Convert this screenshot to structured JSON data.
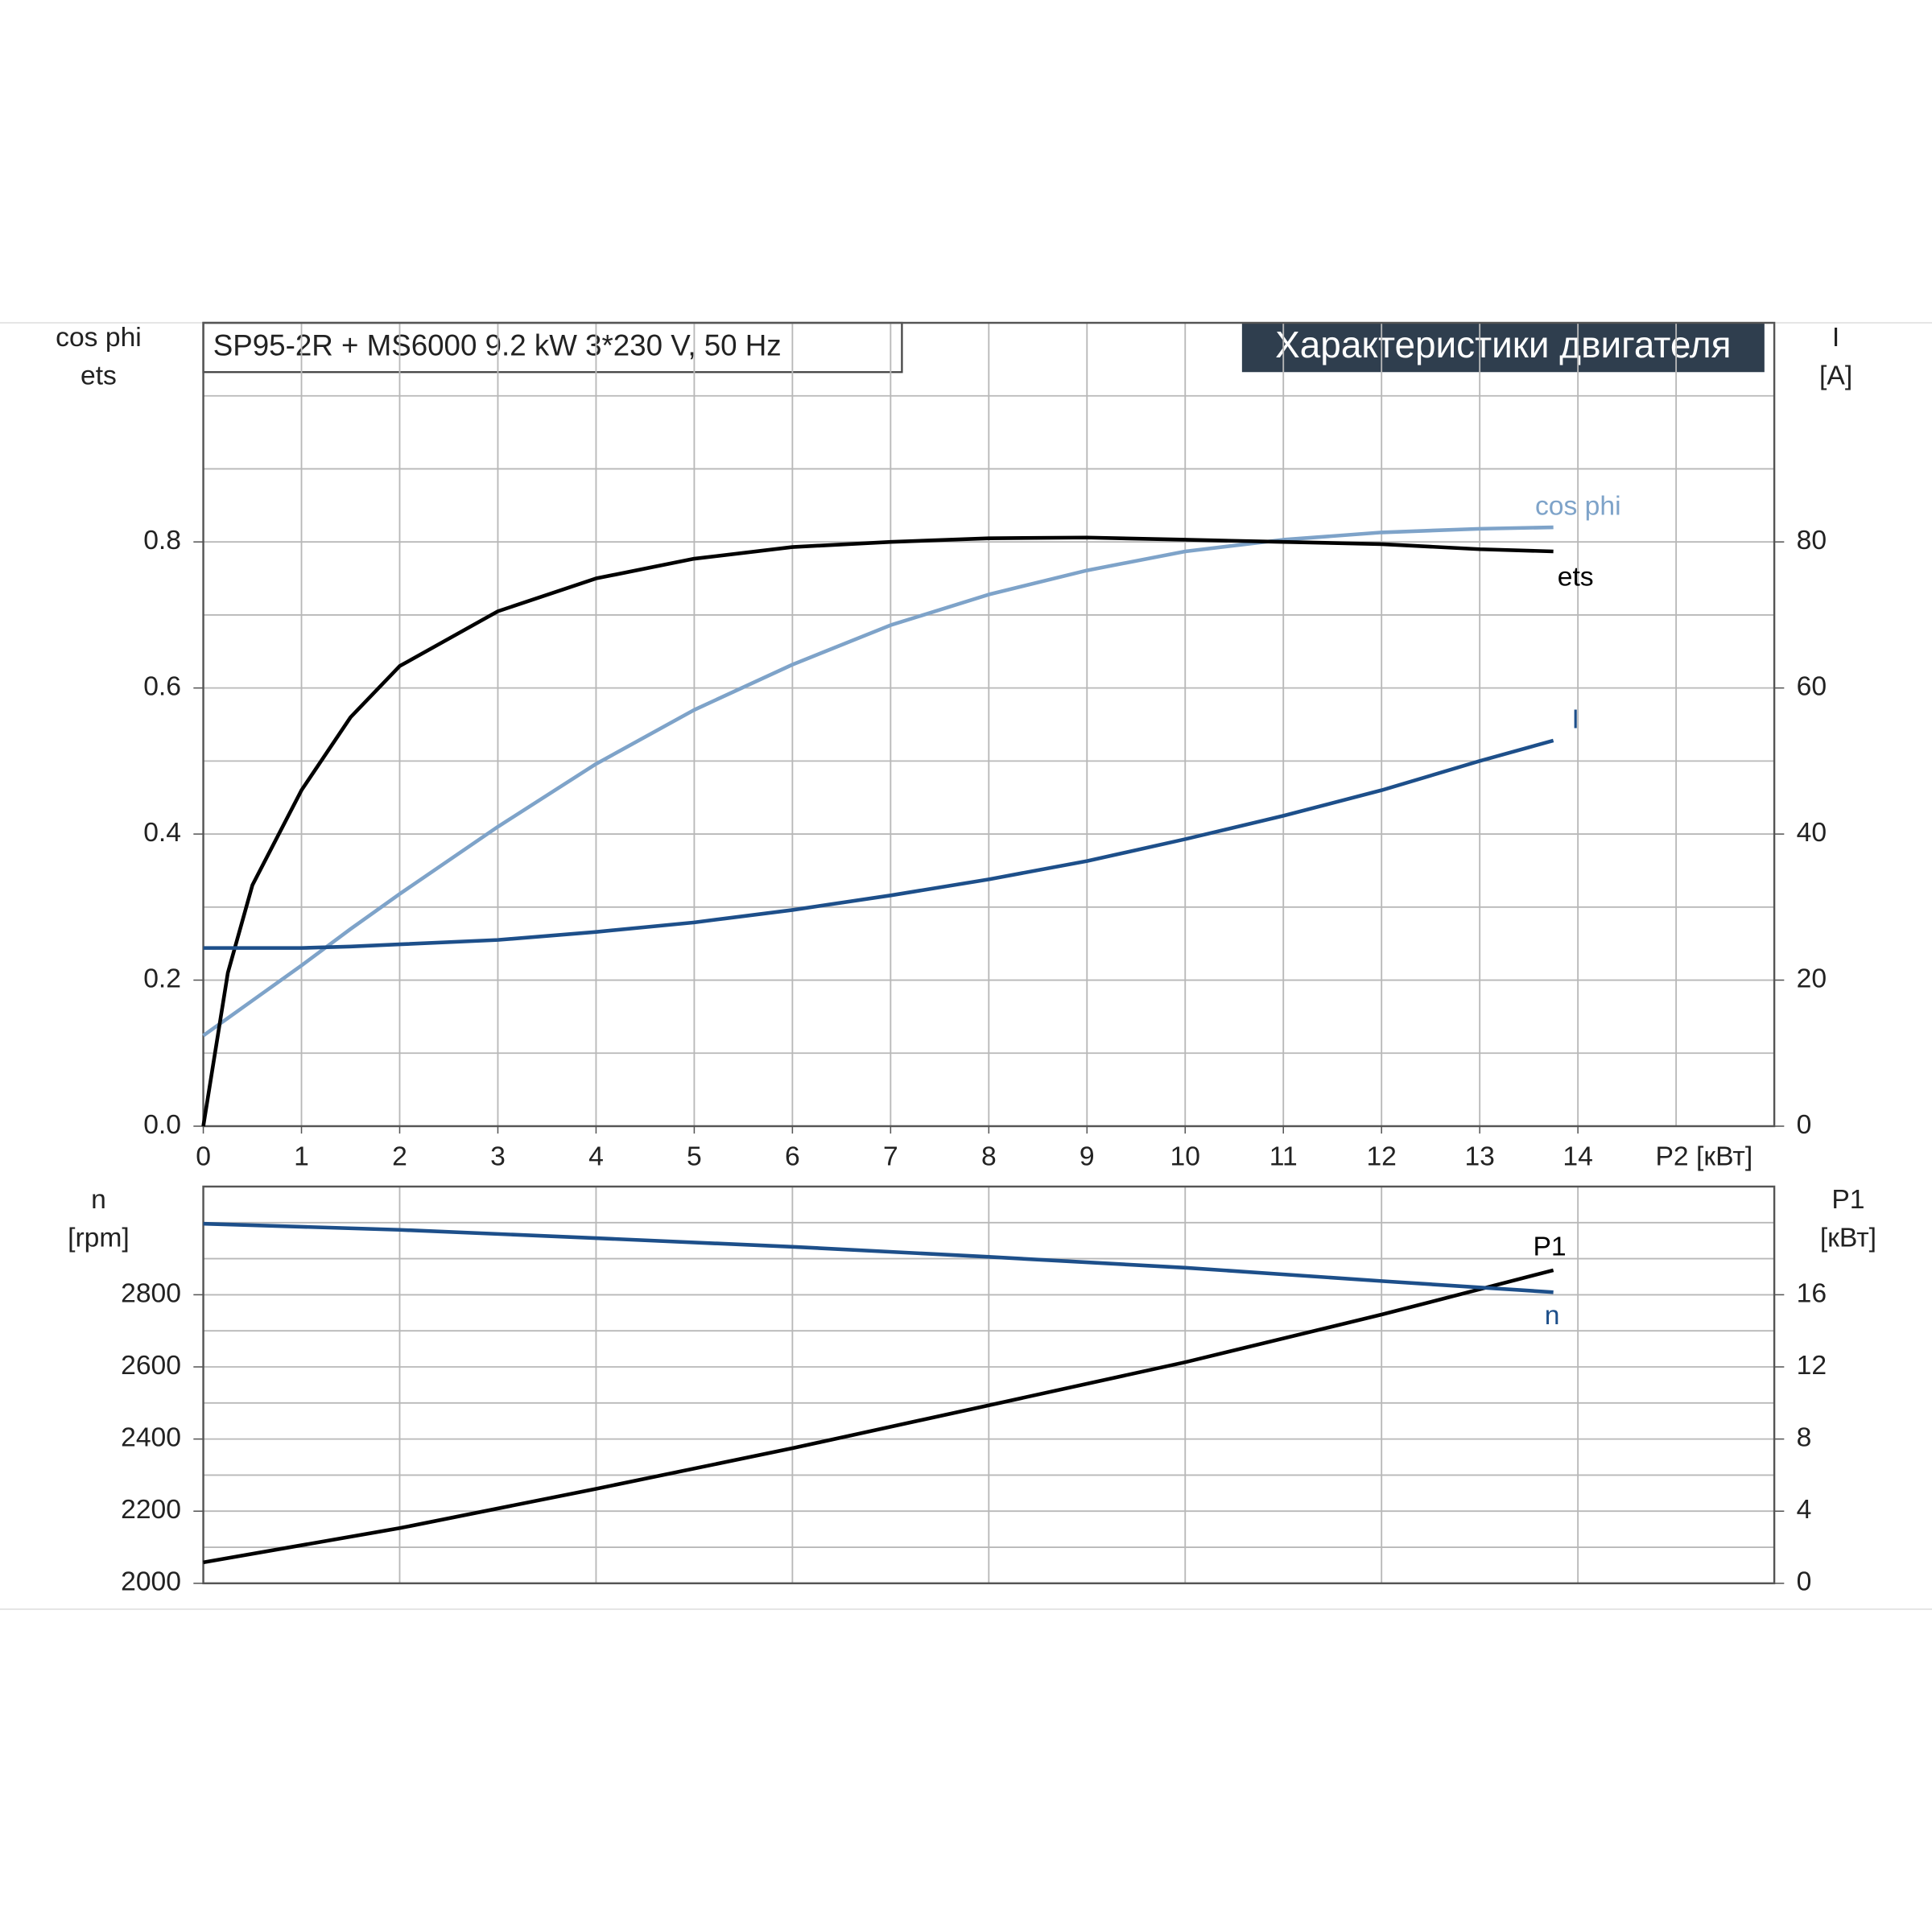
{
  "chart_data": [
    {
      "type": "line",
      "title": "SP95-2R + MS6000   9.2 kW   3*230 V, 50 Hz",
      "subtitle": "Характеристики двигателя",
      "xlabel": "P2 [кВт]",
      "ylabel": [
        "cos phi",
        "ets"
      ],
      "y2label": [
        "I",
        "[A]"
      ],
      "xlim": [
        0,
        16
      ],
      "xticks": [
        0,
        1,
        2,
        3,
        4,
        5,
        6,
        7,
        8,
        9,
        10,
        11,
        12,
        13,
        14
      ],
      "xgrid": [
        15
      ],
      "ylim": [
        0,
        1.1
      ],
      "yticks": [
        {
          "value": 0,
          "label": "0.0"
        },
        0.2,
        0.4,
        0.6,
        0.8
      ],
      "ygrid": [
        0.1,
        0.3,
        0.5,
        0.7,
        0.9,
        1.0
      ],
      "y2lim": [
        0,
        110
      ],
      "y2ticks": [
        0,
        20,
        40,
        60,
        80
      ],
      "grid": true,
      "x": [
        0,
        0.25,
        0.5,
        1,
        1.5,
        2,
        3,
        4,
        5,
        6,
        7,
        8,
        9,
        10,
        11,
        12,
        13,
        13.75
      ],
      "series": [
        {
          "name": "cos phi",
          "color": "#7ea3c9",
          "values": [
            0.124,
            0.148,
            0.172,
            0.22,
            0.27,
            0.318,
            0.41,
            0.496,
            0.57,
            0.632,
            0.686,
            0.728,
            0.761,
            0.787,
            0.803,
            0.813,
            0.818,
            0.82
          ]
        },
        {
          "name": "ets",
          "color": "#000000",
          "values": [
            0,
            0.21,
            0.33,
            0.46,
            0.56,
            0.63,
            0.705,
            0.75,
            0.777,
            0.793,
            0.8,
            0.805,
            0.806,
            0.803,
            0.8,
            0.797,
            0.79,
            0.787
          ]
        },
        {
          "name": "I",
          "color": "#1d4f8a",
          "axis": "y2",
          "values": [
            24.4,
            24.4,
            24.4,
            24.4,
            24.6,
            24.9,
            25.5,
            26.6,
            27.9,
            29.6,
            31.6,
            33.8,
            36.3,
            39.3,
            42.5,
            46,
            50,
            52.8
          ]
        }
      ]
    },
    {
      "type": "line",
      "ylabel": [
        "n",
        "[rpm]"
      ],
      "y2label": [
        "P1",
        "[кВт]"
      ],
      "xlim": [
        0,
        16
      ],
      "xgrid": [
        2,
        4,
        6,
        8,
        10,
        12,
        14
      ],
      "ylim": [
        2000,
        3100
      ],
      "yticks": [
        2000,
        2200,
        2400,
        2600,
        2800
      ],
      "ygrid": [
        2100,
        2300,
        2500,
        2700,
        2900,
        3000
      ],
      "y2lim": [
        0,
        22
      ],
      "y2ticks": [
        0,
        4,
        8,
        12,
        16
      ],
      "grid": true,
      "x": [
        0,
        2,
        4,
        6,
        8,
        10,
        12,
        13.75
      ],
      "series": [
        {
          "name": "P1",
          "color": "#000000",
          "axis": "y2",
          "values": [
            1.16,
            3.06,
            5.24,
            7.49,
            9.87,
            12.26,
            14.9,
            17.36
          ]
        },
        {
          "name": "n",
          "color": "#1d4f8a",
          "values": [
            2997,
            2980,
            2957,
            2933,
            2905,
            2875,
            2838,
            2807
          ]
        }
      ]
    }
  ]
}
